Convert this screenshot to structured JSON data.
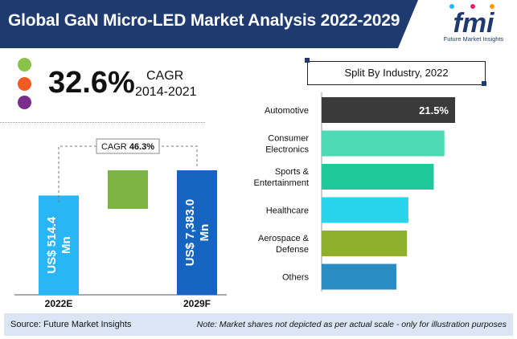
{
  "header": {
    "title": "Global GaN Micro-LED Market Analysis 2022-2029"
  },
  "logo": {
    "text": "fmi",
    "subtitle": "Future Market Insights"
  },
  "colors": {
    "header_bg": "#1f3a6e",
    "accent_green": "#8bc34a",
    "accent_orange": "#f15a22",
    "accent_purple": "#7b2d8e",
    "bar_2022": "#29b6f6",
    "bar_2029": "#1565c0",
    "bar_growth": "#7cb342",
    "footer_bg": "#dbe6f4"
  },
  "cagr_summary": {
    "value": "32.6%",
    "label": "CAGR",
    "period": "2014-2021"
  },
  "segment_title": "Split By Industry, 2022",
  "footer": {
    "source": "Source: Future Market Insights",
    "note": "Note: Market shares not depicted as per actual scale - only for illustration purposes"
  },
  "chart_data": [
    {
      "type": "bar",
      "title": "",
      "categories": [
        "2022E",
        "2029F"
      ],
      "values": [
        514.4,
        7383.0
      ],
      "value_labels": [
        "US$ 514.4 Mn",
        "US$ 7,383.0 Mn"
      ],
      "value_label_lines": [
        [
          "US$ 514.4",
          "Mn"
        ],
        [
          "US$ 7,383.0",
          "Mn"
        ]
      ],
      "cagr_label": "CAGR",
      "cagr_value": "46.3%",
      "note": "illustrative scale"
    },
    {
      "type": "bar",
      "orientation": "horizontal",
      "title": "Split By Industry, 2022",
      "categories": [
        "Automotive",
        "Consumer Electronics",
        "Sports & Entertainment",
        "Healthcare",
        "Aerospace & Defense",
        "Others"
      ],
      "category_lines": [
        [
          "Automotive"
        ],
        [
          "Consumer",
          "Electronics"
        ],
        [
          "Sports &",
          "Entertainment"
        ],
        [
          "Healthcare"
        ],
        [
          "Aerospace &",
          "Defense"
        ],
        [
          "Others"
        ]
      ],
      "relative_lengths": [
        1.0,
        0.92,
        0.84,
        0.65,
        0.64,
        0.56
      ],
      "colors": [
        "#3a3a3a",
        "#4dd9b4",
        "#1ec99a",
        "#29d3ec",
        "#8fb02c",
        "#2b8cc4"
      ],
      "labels": [
        "21.5%",
        "",
        "",
        "",
        "",
        ""
      ]
    }
  ]
}
